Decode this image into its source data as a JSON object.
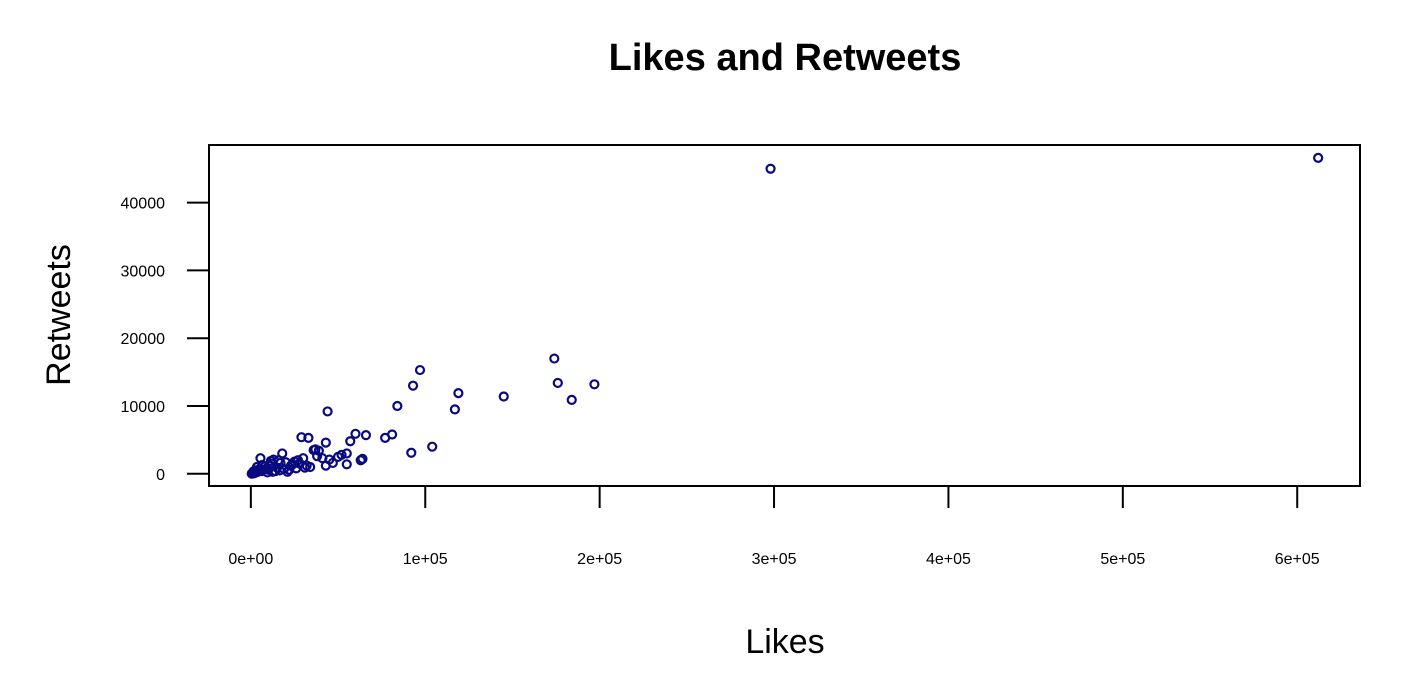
{
  "chart_data": {
    "type": "scatter",
    "title": "Likes and Retweets",
    "xlabel": "Likes",
    "ylabel": "Retweets",
    "xlim": [
      -24000,
      636000
    ],
    "ylim": [
      -1800,
      48500
    ],
    "x_ticks": [
      0,
      100000,
      200000,
      300000,
      400000,
      500000,
      600000
    ],
    "x_tick_labels": [
      "0e+00",
      "1e+05",
      "2e+05",
      "3e+05",
      "4e+05",
      "5e+05",
      "6e+05"
    ],
    "y_ticks": [
      0,
      10000,
      20000,
      30000,
      40000
    ],
    "y_tick_labels": [
      "0",
      "10000",
      "20000",
      "30000",
      "40000"
    ],
    "grid": false,
    "marker": "open-circle",
    "color": "#0a0a80",
    "points": [
      [
        612000,
        46600
      ],
      [
        298000,
        45000
      ],
      [
        174000,
        17000
      ],
      [
        176000,
        13400
      ],
      [
        197000,
        13200
      ],
      [
        184000,
        10900
      ],
      [
        145000,
        11400
      ],
      [
        119000,
        11900
      ],
      [
        117000,
        9500
      ],
      [
        97000,
        15300
      ],
      [
        93000,
        13000
      ],
      [
        84000,
        10000
      ],
      [
        44000,
        9200
      ],
      [
        92000,
        3100
      ],
      [
        104000,
        4000
      ],
      [
        77000,
        5300
      ],
      [
        81000,
        5800
      ],
      [
        60000,
        5900
      ],
      [
        66000,
        5700
      ],
      [
        57000,
        4800
      ],
      [
        43000,
        4600
      ],
      [
        29000,
        5400
      ],
      [
        33000,
        5300
      ],
      [
        37000,
        3600
      ],
      [
        39000,
        3400
      ],
      [
        36000,
        3500
      ],
      [
        38000,
        2600
      ],
      [
        41000,
        2300
      ],
      [
        45000,
        2100
      ],
      [
        47000,
        1600
      ],
      [
        43000,
        1200
      ],
      [
        55000,
        3000
      ],
      [
        55000,
        1400
      ],
      [
        50000,
        2500
      ],
      [
        52000,
        2800
      ],
      [
        63000,
        2000
      ],
      [
        64000,
        2200
      ],
      [
        30000,
        2300
      ],
      [
        28000,
        1500
      ],
      [
        32000,
        1200
      ],
      [
        25000,
        1800
      ],
      [
        23000,
        1200
      ],
      [
        26000,
        800
      ],
      [
        20000,
        1700
      ],
      [
        18000,
        3000
      ],
      [
        17000,
        1600
      ],
      [
        16000,
        2000
      ],
      [
        15000,
        900
      ],
      [
        13000,
        2100
      ],
      [
        12000,
        1500
      ],
      [
        11000,
        1200
      ],
      [
        10000,
        600
      ],
      [
        9000,
        800
      ],
      [
        8000,
        1100
      ],
      [
        7000,
        600
      ],
      [
        6000,
        400
      ],
      [
        5000,
        700
      ],
      [
        4000,
        300
      ],
      [
        3000,
        200
      ],
      [
        2000,
        100
      ],
      [
        1000,
        50
      ],
      [
        500,
        20
      ],
      [
        1500,
        350
      ],
      [
        5500,
        2300
      ],
      [
        3500,
        1000
      ],
      [
        14000,
        400
      ],
      [
        19000,
        700
      ],
      [
        22000,
        600
      ],
      [
        24000,
        1400
      ],
      [
        27000,
        2000
      ],
      [
        31000,
        900
      ],
      [
        34000,
        1000
      ],
      [
        21000,
        300
      ],
      [
        2500,
        500
      ],
      [
        6500,
        1300
      ],
      [
        9500,
        200
      ],
      [
        12500,
        300
      ],
      [
        16500,
        500
      ],
      [
        11500,
        1900
      ]
    ]
  }
}
